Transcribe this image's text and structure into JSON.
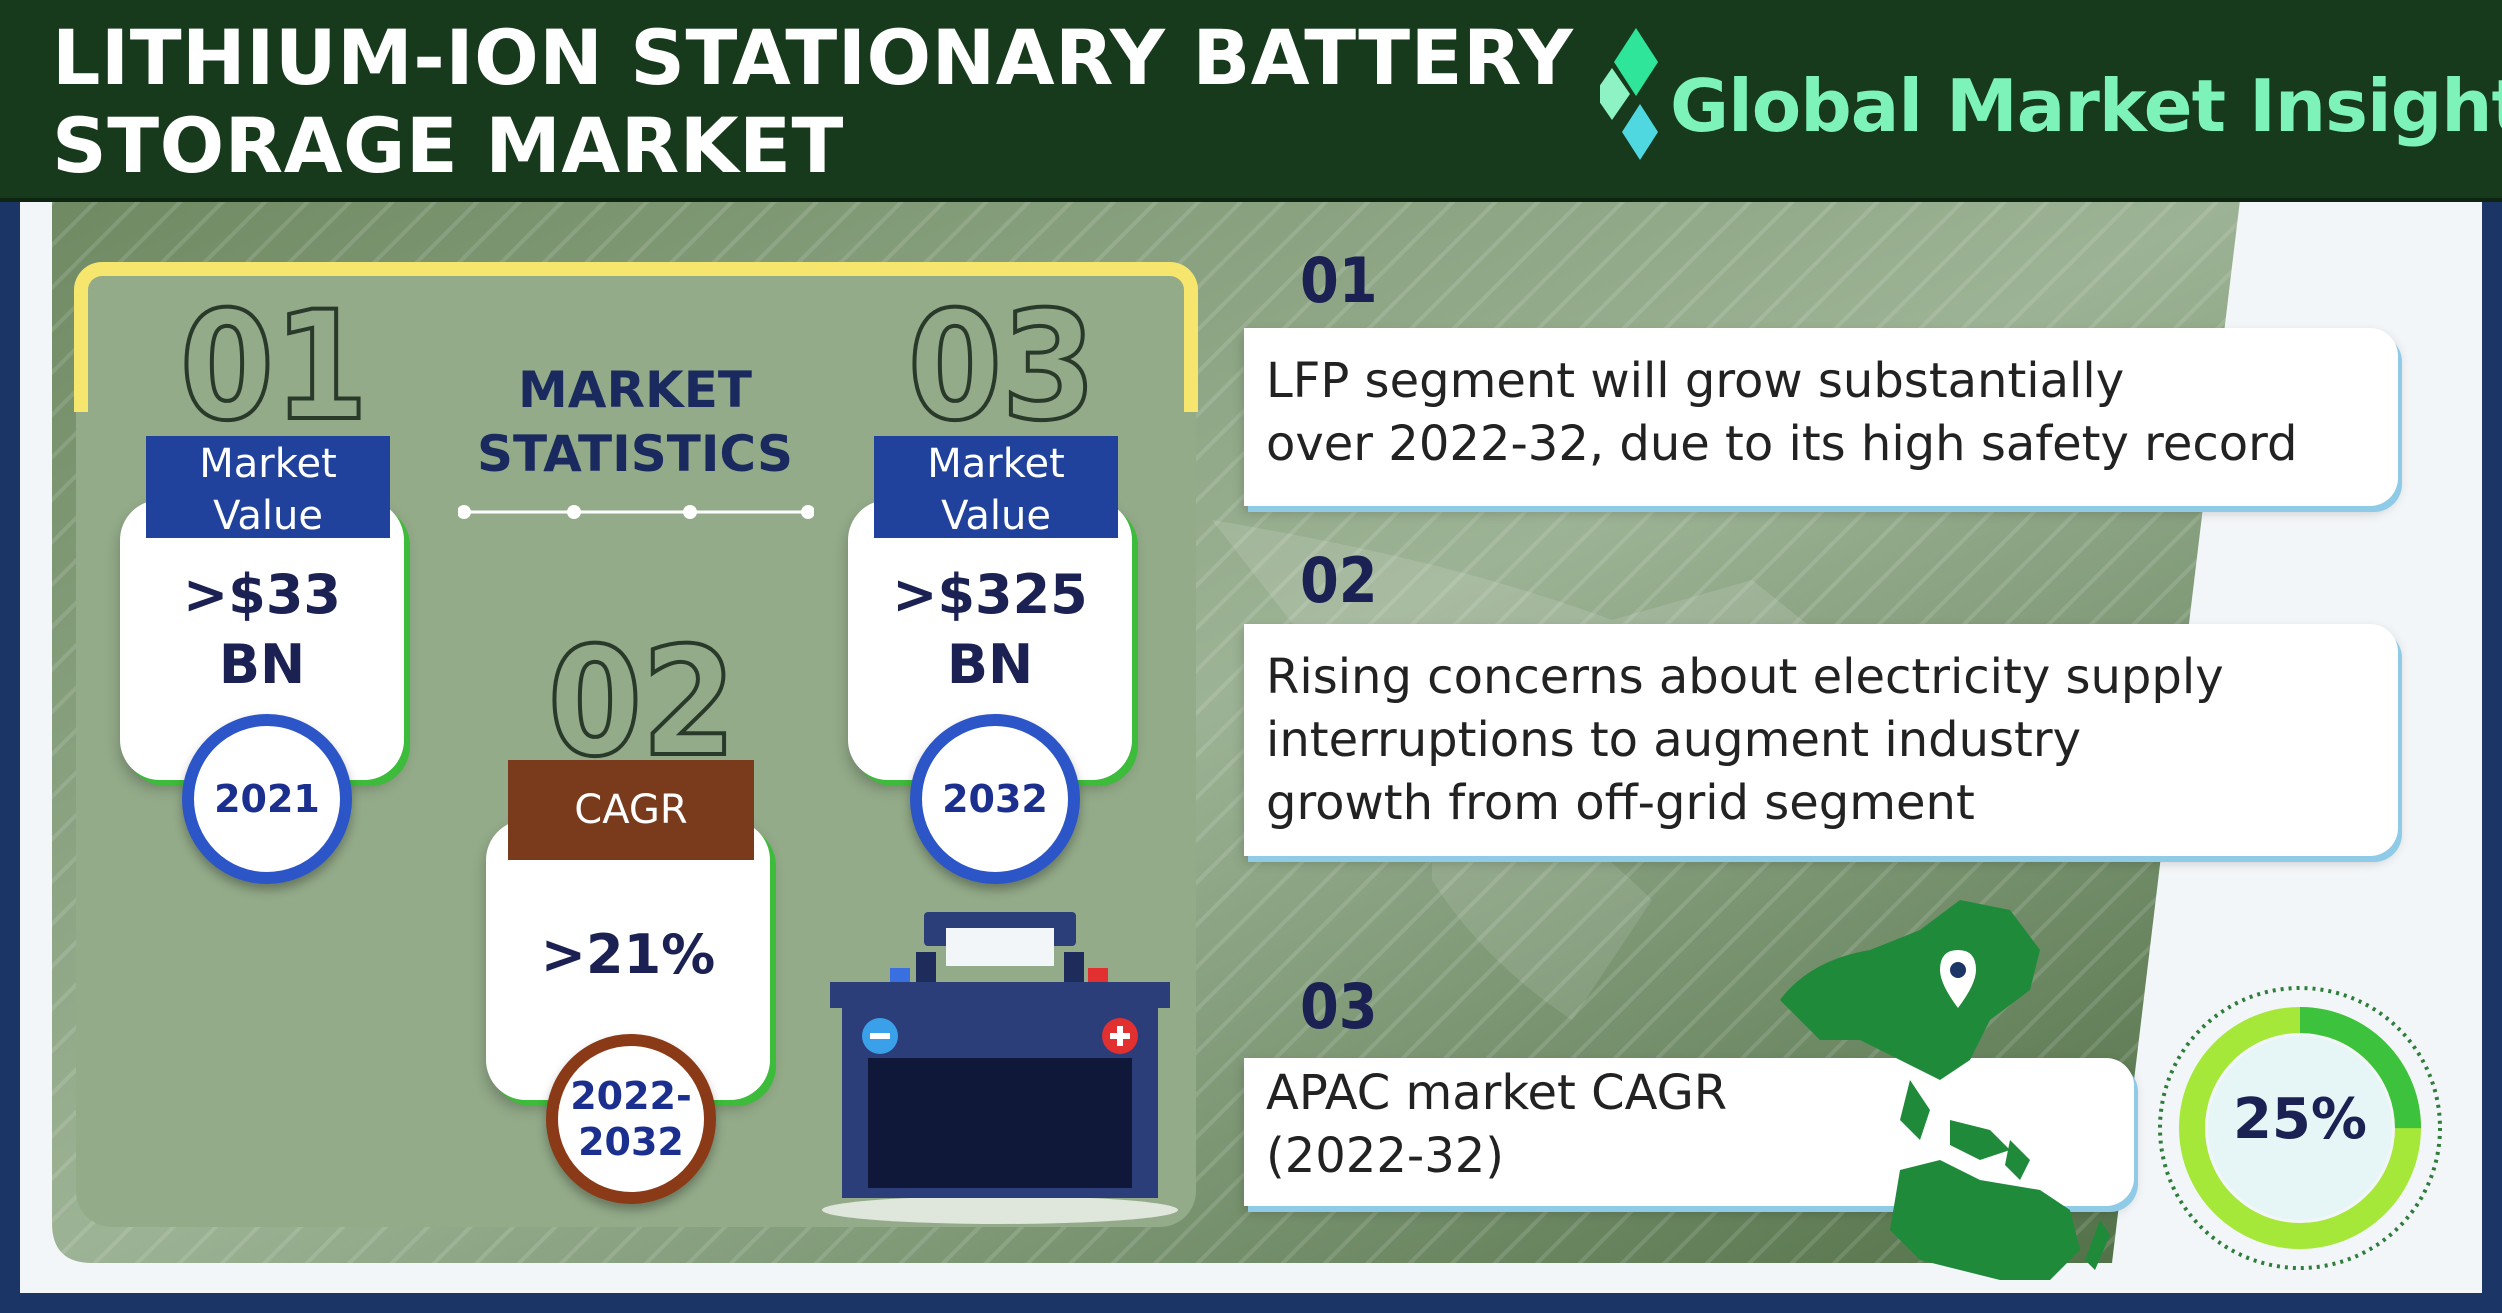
{
  "header": {
    "title_line1": "LITHIUM-ION STATIONARY BATTERY",
    "title_line2": "STORAGE MARKET",
    "brand_name": "Global Market Insights"
  },
  "stats": {
    "heading_line1": "MARKET",
    "heading_line2": "STATISTICS",
    "item1": {
      "number": "01",
      "tab_line1": "Market",
      "tab_line2": "Value",
      "value_line1": ">$33",
      "value_line2": "BN",
      "year": "2021"
    },
    "item2": {
      "number": "02",
      "tab": "CAGR",
      "value": ">21%",
      "year_line1": "2022-",
      "year_line2": "2032"
    },
    "item3": {
      "number": "03",
      "tab_line1": "Market",
      "tab_line2": "Value",
      "value_line1": ">$325",
      "value_line2": "BN",
      "year": "2032"
    }
  },
  "points": [
    {
      "number": "01",
      "lines": [
        "LFP segment will grow substantially",
        "over 2022-32, due to its high safety record"
      ]
    },
    {
      "number": "02",
      "lines": [
        "Rising concerns about electricity supply",
        "interruptions to augment industry",
        "growth from off-grid segment"
      ]
    },
    {
      "number": "03",
      "lines": [
        "APAC market CAGR",
        "(2022-32)"
      ],
      "donut_label": "25%",
      "donut_value": 25
    }
  ],
  "colors": {
    "header_bg": "#163a1b",
    "brand": "#7df3b9",
    "navy": "#1b2152",
    "tab_blue": "#21429c",
    "tab_brown": "#7a3b1c",
    "accent_yellow": "#f6e66e",
    "accent_green": "#3dbb3a"
  },
  "icons": [
    "diamond-logo-icon",
    "battery-icon",
    "location-pin-icon",
    "apac-map-icon",
    "donut-gauge-icon"
  ]
}
